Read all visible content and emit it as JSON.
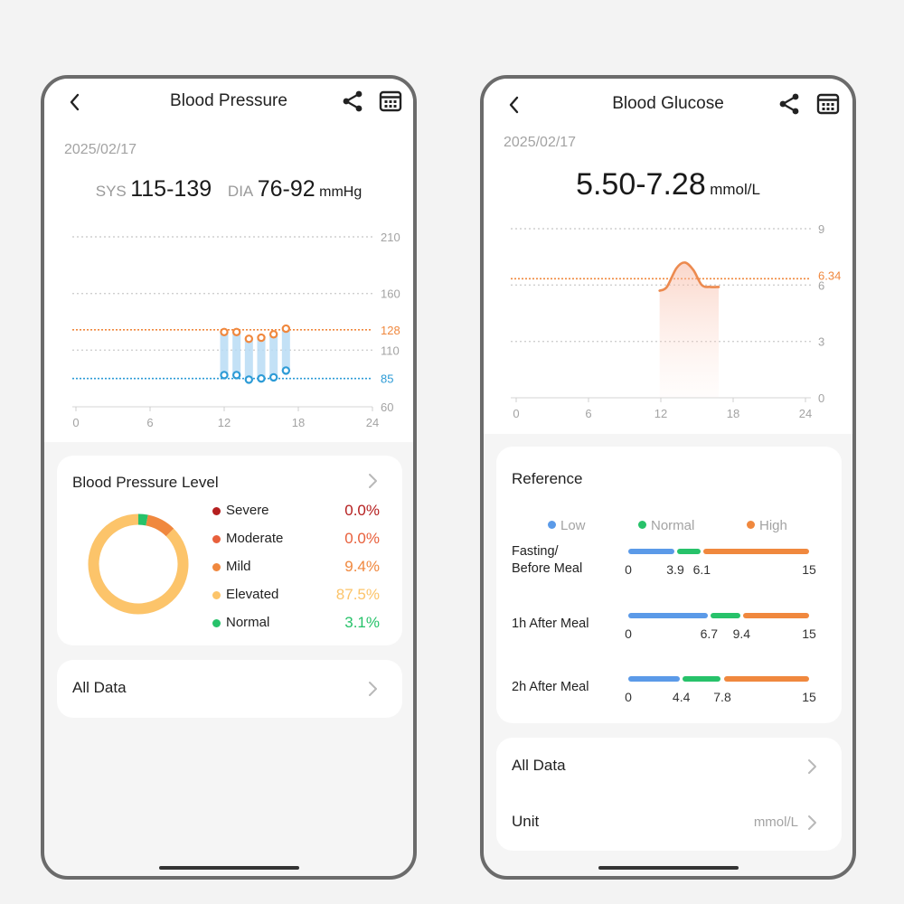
{
  "bp": {
    "title": "Blood Pressure",
    "date": "2025/02/17",
    "sys_label": "SYS",
    "sys_value": "115-139",
    "dia_label": "DIA",
    "dia_value": "76-92",
    "unit": "mmHg",
    "chart_data": {
      "type": "bar",
      "x_ticks": [
        "0",
        "6",
        "12",
        "18",
        "24"
      ],
      "y_ticks": [
        "210",
        "160",
        "110",
        "60"
      ],
      "ylim": [
        60,
        210
      ],
      "xlim": [
        0,
        24
      ],
      "reference_lines": [
        {
          "label": "128",
          "value": 128,
          "color": "#f0883e"
        },
        {
          "label": "85",
          "value": 85,
          "color": "#2d9bd6"
        }
      ],
      "ranges": [
        {
          "x": 12,
          "sys": 126,
          "dia": 88
        },
        {
          "x": 13,
          "sys": 126,
          "dia": 88
        },
        {
          "x": 14,
          "sys": 120,
          "dia": 84
        },
        {
          "x": 15,
          "sys": 121,
          "dia": 85
        },
        {
          "x": 16,
          "sys": 124,
          "dia": 86
        },
        {
          "x": 17,
          "sys": 129,
          "dia": 92
        }
      ]
    },
    "level": {
      "title": "Blood Pressure Level",
      "items": [
        {
          "name": "Severe",
          "value": "0.0%",
          "percent": 0.0,
          "color": "#b51f1f"
        },
        {
          "name": "Moderate",
          "value": "0.0%",
          "percent": 0.0,
          "color": "#e8603c"
        },
        {
          "name": "Mild",
          "value": "9.4%",
          "percent": 9.4,
          "color": "#f0883e"
        },
        {
          "name": "Elevated",
          "value": "87.5%",
          "percent": 87.5,
          "color": "#fcc46a"
        },
        {
          "name": "Normal",
          "value": "3.1%",
          "percent": 3.1,
          "color": "#27c26a"
        }
      ]
    },
    "all_data_label": "All Data"
  },
  "bg": {
    "title": "Blood Glucose",
    "date": "2025/02/17",
    "value": "5.50-7.28",
    "unit": "mmol/L",
    "chart_data": {
      "type": "area",
      "x_ticks": [
        "0",
        "6",
        "12",
        "18",
        "24"
      ],
      "y_ticks": [
        "9",
        "6",
        "3",
        "0"
      ],
      "ylim": [
        0,
        9
      ],
      "xlim": [
        0,
        24
      ],
      "reference_line": {
        "label": "6.34",
        "value": 6.34,
        "color": "#f0883e"
      },
      "x": [
        11.9,
        12.5,
        13.3,
        14.0,
        14.7,
        15.4,
        16.1,
        16.8
      ],
      "y": [
        5.7,
        5.9,
        6.9,
        7.2,
        6.8,
        6.0,
        5.9,
        5.9
      ]
    },
    "reference": {
      "title": "Reference",
      "legend": [
        {
          "label": "Low",
          "color": "#5b9ae8"
        },
        {
          "label": "Normal",
          "color": "#27c26a"
        },
        {
          "label": "High",
          "color": "#f0883e"
        }
      ],
      "rows": [
        {
          "label_line1": "Fasting/",
          "label_line2": "Before Meal",
          "t0": "0",
          "t1": "3.9",
          "t2": "6.1",
          "t3": "15",
          "v1": 3.9,
          "v2": 6.1,
          "max": 15
        },
        {
          "label_line1": "1h After Meal",
          "label_line2": "",
          "t0": "0",
          "t1": "6.7",
          "t2": "9.4",
          "t3": "15",
          "v1": 6.7,
          "v2": 9.4,
          "max": 15
        },
        {
          "label_line1": "2h After Meal",
          "label_line2": "",
          "t0": "0",
          "t1": "4.4",
          "t2": "7.8",
          "t3": "15",
          "v1": 4.4,
          "v2": 7.8,
          "max": 15
        }
      ]
    },
    "all_data_label": "All Data",
    "unit_label": "Unit",
    "unit_value": "mmol/L"
  },
  "icons": {
    "back": "chevron-left-icon",
    "share": "share-icon",
    "calendar": "calendar-icon",
    "chevron": "chevron-right-icon"
  }
}
